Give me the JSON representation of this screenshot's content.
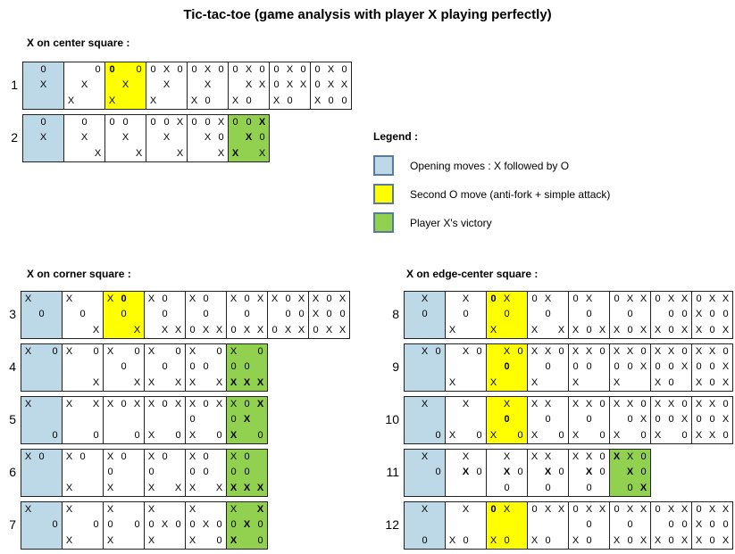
{
  "title": "Tic-tac-toe (game analysis with player X playing perfectly)",
  "colors": {
    "blue": "#bdd9e8",
    "yellow": "#ffff00",
    "green": "#92d050",
    "white": "#ffffff"
  },
  "legend": {
    "title": "Legend :",
    "items": [
      {
        "color_key": "blue",
        "label": "Opening moves : X followed by O"
      },
      {
        "color_key": "yellow",
        "label": "Second O move  (anti-fork + simple attack)"
      },
      {
        "color_key": "green",
        "label": "Player X's victory"
      }
    ]
  },
  "sections": [
    {
      "title": "X on center square :",
      "rows": [
        {
          "num": "1",
          "boards": [
            {
              "bg": "b",
              "lines": [
                " 0 ",
                " X ",
                "   "
              ],
              "bold": []
            },
            {
              "bg": "w",
              "lines": [
                "  0",
                " X ",
                "X  "
              ],
              "bold": []
            },
            {
              "bg": "y",
              "lines": [
                "0 0",
                " X ",
                "X  "
              ],
              "bold": [
                "0,0"
              ]
            },
            {
              "bg": "w",
              "lines": [
                "0X0",
                " X ",
                "X  "
              ],
              "bold": []
            },
            {
              "bg": "w",
              "lines": [
                "0X0",
                " X ",
                "X0 "
              ],
              "bold": []
            },
            {
              "bg": "w",
              "lines": [
                "0X0",
                " XX",
                "X0 "
              ],
              "bold": []
            },
            {
              "bg": "w",
              "lines": [
                "0X0",
                "0XX",
                "X0 "
              ],
              "bold": []
            },
            {
              "bg": "w",
              "lines": [
                "0X0",
                "0XX",
                "X00"
              ],
              "bold": []
            }
          ]
        },
        {
          "num": "2",
          "boards": [
            {
              "bg": "b",
              "lines": [
                " 0 ",
                " X ",
                "   "
              ],
              "bold": []
            },
            {
              "bg": "w",
              "lines": [
                " 0 ",
                " X ",
                "  X"
              ],
              "bold": []
            },
            {
              "bg": "w",
              "lines": [
                "00 ",
                " X ",
                "  X"
              ],
              "bold": []
            },
            {
              "bg": "w",
              "lines": [
                "00X",
                " X ",
                "  X"
              ],
              "bold": []
            },
            {
              "bg": "w",
              "lines": [
                "00X",
                " X0",
                "  X"
              ],
              "bold": []
            },
            {
              "bg": "g",
              "lines": [
                "00X",
                " X0",
                "X X"
              ],
              "bold": [
                "0,2",
                "1,1",
                "2,0"
              ]
            }
          ]
        }
      ]
    },
    {
      "title": "X on corner square :",
      "rows": [
        {
          "num": "3",
          "boards": [
            {
              "bg": "b",
              "lines": [
                "X  ",
                " 0 ",
                "   "
              ],
              "bold": []
            },
            {
              "bg": "w",
              "lines": [
                "X  ",
                " 0 ",
                "  X"
              ],
              "bold": []
            },
            {
              "bg": "y",
              "lines": [
                "X0 ",
                " 0 ",
                "  X"
              ],
              "bold": [
                "0,1"
              ]
            },
            {
              "bg": "w",
              "lines": [
                "X0 ",
                " 0 ",
                " XX"
              ],
              "bold": []
            },
            {
              "bg": "w",
              "lines": [
                "X0 ",
                " 0 ",
                "0XX"
              ],
              "bold": []
            },
            {
              "bg": "w",
              "lines": [
                "X0X",
                " 0 ",
                "0XX"
              ],
              "bold": []
            },
            {
              "bg": "w",
              "lines": [
                "X0X",
                " 00",
                "0XX"
              ],
              "bold": []
            },
            {
              "bg": "w",
              "lines": [
                "X0X",
                "X00",
                "0XX"
              ],
              "bold": []
            }
          ]
        },
        {
          "num": "4",
          "boards": [
            {
              "bg": "b",
              "lines": [
                "X 0",
                "   ",
                "   "
              ],
              "bold": []
            },
            {
              "bg": "w",
              "lines": [
                "X 0",
                "   ",
                "  X"
              ],
              "bold": []
            },
            {
              "bg": "w",
              "lines": [
                "X 0",
                " 0 ",
                "  X"
              ],
              "bold": []
            },
            {
              "bg": "w",
              "lines": [
                "X 0",
                " 0 ",
                "X X"
              ],
              "bold": []
            },
            {
              "bg": "w",
              "lines": [
                "X 0",
                "00 ",
                "X X"
              ],
              "bold": []
            },
            {
              "bg": "g",
              "lines": [
                "X 0",
                "00 ",
                "XXX"
              ],
              "bold": [
                "2,0",
                "2,1",
                "2,2"
              ]
            }
          ]
        },
        {
          "num": "5",
          "boards": [
            {
              "bg": "b",
              "lines": [
                "X  ",
                "   ",
                "  0"
              ],
              "bold": []
            },
            {
              "bg": "w",
              "lines": [
                "X X",
                "   ",
                "  0"
              ],
              "bold": []
            },
            {
              "bg": "w",
              "lines": [
                "X0X",
                "   ",
                "  0"
              ],
              "bold": []
            },
            {
              "bg": "w",
              "lines": [
                "X0X",
                "   ",
                "X 0"
              ],
              "bold": []
            },
            {
              "bg": "w",
              "lines": [
                "X0X",
                "0  ",
                "X 0"
              ],
              "bold": []
            },
            {
              "bg": "g",
              "lines": [
                "X0X",
                "0X ",
                "X 0"
              ],
              "bold": [
                "0,2",
                "1,1",
                "2,0"
              ]
            }
          ]
        },
        {
          "num": "6",
          "boards": [
            {
              "bg": "b",
              "lines": [
                "X0 ",
                "   ",
                "   "
              ],
              "bold": []
            },
            {
              "bg": "w",
              "lines": [
                "X0 ",
                "   ",
                "X  "
              ],
              "bold": []
            },
            {
              "bg": "w",
              "lines": [
                "X0 ",
                "0  ",
                "X  "
              ],
              "bold": []
            },
            {
              "bg": "w",
              "lines": [
                "X0 ",
                "0  ",
                "X X"
              ],
              "bold": []
            },
            {
              "bg": "w",
              "lines": [
                "X0 ",
                "00 ",
                "X X"
              ],
              "bold": []
            },
            {
              "bg": "g",
              "lines": [
                "X0 ",
                "00 ",
                "XXX"
              ],
              "bold": [
                "2,0",
                "2,1",
                "2,2"
              ]
            }
          ]
        },
        {
          "num": "7",
          "boards": [
            {
              "bg": "b",
              "lines": [
                "X  ",
                "  0",
                "   "
              ],
              "bold": []
            },
            {
              "bg": "w",
              "lines": [
                "X  ",
                "  0",
                "X  "
              ],
              "bold": []
            },
            {
              "bg": "w",
              "lines": [
                "X  ",
                "0 0",
                "X  "
              ],
              "bold": []
            },
            {
              "bg": "w",
              "lines": [
                "X  ",
                "0X0",
                "X  "
              ],
              "bold": []
            },
            {
              "bg": "w",
              "lines": [
                "X  ",
                "0X0",
                "X 0"
              ],
              "bold": []
            },
            {
              "bg": "g",
              "lines": [
                "X X",
                "0X0",
                "X 0"
              ],
              "bold": [
                "0,2",
                "1,1",
                "2,0"
              ]
            }
          ]
        }
      ]
    },
    {
      "title": "X on edge-center square :",
      "rows": [
        {
          "num": "8",
          "boards": [
            {
              "bg": "b",
              "lines": [
                " X ",
                " 0 ",
                "   "
              ],
              "bold": []
            },
            {
              "bg": "w",
              "lines": [
                " X ",
                " 0 ",
                "X  "
              ],
              "bold": []
            },
            {
              "bg": "y",
              "lines": [
                "0X ",
                " 0 ",
                "X  "
              ],
              "bold": [
                "0,0"
              ]
            },
            {
              "bg": "w",
              "lines": [
                "0X ",
                " 0 ",
                "X X"
              ],
              "bold": []
            },
            {
              "bg": "w",
              "lines": [
                "0X ",
                " 0 ",
                "X0X"
              ],
              "bold": []
            },
            {
              "bg": "w",
              "lines": [
                "0XX",
                " 0 ",
                "X0X"
              ],
              "bold": []
            },
            {
              "bg": "w",
              "lines": [
                "0XX",
                " 00",
                "X0X"
              ],
              "bold": []
            },
            {
              "bg": "w",
              "lines": [
                "0XX",
                "X00",
                "X0X"
              ],
              "bold": []
            }
          ]
        },
        {
          "num": "9",
          "boards": [
            {
              "bg": "b",
              "lines": [
                " X0",
                "   ",
                "   "
              ],
              "bold": []
            },
            {
              "bg": "w",
              "lines": [
                " X0",
                "   ",
                "X  "
              ],
              "bold": []
            },
            {
              "bg": "y",
              "lines": [
                " X0",
                " 0 ",
                "X  "
              ],
              "bold": [
                "1,1"
              ]
            },
            {
              "bg": "w",
              "lines": [
                "XX0",
                " 0 ",
                "X  "
              ],
              "bold": []
            },
            {
              "bg": "w",
              "lines": [
                "XX0",
                "00 ",
                "X  "
              ],
              "bold": []
            },
            {
              "bg": "w",
              "lines": [
                "XX0",
                "00X",
                "X  "
              ],
              "bold": []
            },
            {
              "bg": "w",
              "lines": [
                "XX0",
                "00X",
                "X0 "
              ],
              "bold": []
            },
            {
              "bg": "w",
              "lines": [
                "XX0",
                "00X",
                "X0X"
              ],
              "bold": []
            }
          ]
        },
        {
          "num": "10",
          "boards": [
            {
              "bg": "b",
              "lines": [
                " X ",
                "   ",
                "  0"
              ],
              "bold": []
            },
            {
              "bg": "w",
              "lines": [
                " X ",
                "   ",
                "X 0"
              ],
              "bold": []
            },
            {
              "bg": "y",
              "lines": [
                " X ",
                " 0 ",
                "X 0"
              ],
              "bold": [
                "1,1"
              ]
            },
            {
              "bg": "w",
              "lines": [
                "XX ",
                " 0 ",
                "X 0"
              ],
              "bold": []
            },
            {
              "bg": "w",
              "lines": [
                "XX0",
                " 0 ",
                "X 0"
              ],
              "bold": []
            },
            {
              "bg": "w",
              "lines": [
                "XX0",
                " 0X",
                "X 0"
              ],
              "bold": []
            },
            {
              "bg": "w",
              "lines": [
                "XX0",
                "00X",
                "X 0"
              ],
              "bold": []
            },
            {
              "bg": "w",
              "lines": [
                "XX0",
                "00X",
                "XX0"
              ],
              "bold": []
            }
          ]
        },
        {
          "num": "11",
          "boards": [
            {
              "bg": "b",
              "lines": [
                " X ",
                "  0",
                "   "
              ],
              "bold": []
            },
            {
              "bg": "w",
              "lines": [
                " X ",
                " X0",
                "   "
              ],
              "bold": [
                "1,1"
              ]
            },
            {
              "bg": "w",
              "lines": [
                " X ",
                " X0",
                " 0 "
              ],
              "bold": [
                "1,1"
              ]
            },
            {
              "bg": "w",
              "lines": [
                "XX ",
                " X0",
                " 0 "
              ],
              "bold": [
                "1,1"
              ]
            },
            {
              "bg": "w",
              "lines": [
                "XX0",
                " X0",
                " 0 "
              ],
              "bold": [
                "1,1"
              ]
            },
            {
              "bg": "g",
              "lines": [
                "XX0",
                " X0",
                " 0X"
              ],
              "bold": [
                "0,0",
                "1,1",
                "2,2"
              ]
            }
          ]
        },
        {
          "num": "12",
          "boards": [
            {
              "bg": "b",
              "lines": [
                " X ",
                "   ",
                " 0 "
              ],
              "bold": []
            },
            {
              "bg": "w",
              "lines": [
                " X ",
                "   ",
                "X0 "
              ],
              "bold": []
            },
            {
              "bg": "y",
              "lines": [
                "0X ",
                "   ",
                "X0 "
              ],
              "bold": [
                "0,0"
              ]
            },
            {
              "bg": "w",
              "lines": [
                "0XX",
                "   ",
                "X0 "
              ],
              "bold": []
            },
            {
              "bg": "w",
              "lines": [
                "0XX",
                " 0 ",
                "X0 "
              ],
              "bold": []
            },
            {
              "bg": "w",
              "lines": [
                "0XX",
                " 0 ",
                "X0X"
              ],
              "bold": []
            },
            {
              "bg": "w",
              "lines": [
                "0XX",
                " 00",
                "X0X"
              ],
              "bold": []
            },
            {
              "bg": "w",
              "lines": [
                "0XX",
                "X00",
                "X0X"
              ],
              "bold": []
            }
          ]
        }
      ]
    }
  ]
}
